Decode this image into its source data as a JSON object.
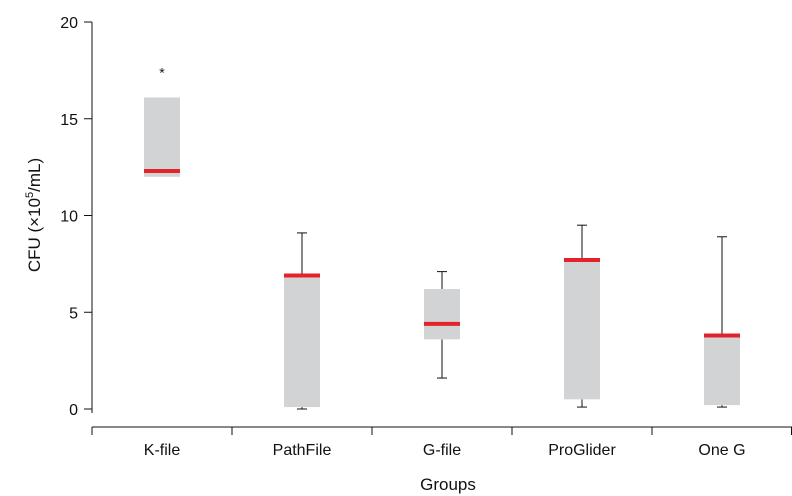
{
  "chart_data": {
    "type": "box",
    "title": "",
    "xlabel": "Groups",
    "ylabel_prefix": "CFU (×10",
    "ylabel_sup": "5",
    "ylabel_suffix": "/mL)",
    "ylim": [
      0,
      20
    ],
    "yticks": [
      "0",
      "5",
      "10",
      "15",
      "20"
    ],
    "grid": false,
    "categories": [
      "K-file",
      "PathFile",
      "G-file",
      "ProGlider",
      "One G"
    ],
    "boxes": [
      {
        "category": "K-file",
        "whisker_low": null,
        "q1": 12.0,
        "median": 12.3,
        "q3": 16.1,
        "whisker_high": null,
        "outlier_marker": "*"
      },
      {
        "category": "PathFile",
        "whisker_low": 0.0,
        "q1": 0.1,
        "median": 6.9,
        "q3": 7.0,
        "whisker_high": 9.1
      },
      {
        "category": "G-file",
        "whisker_low": 1.6,
        "q1": 3.6,
        "median": 4.4,
        "q3": 6.2,
        "whisker_high": 7.1
      },
      {
        "category": "ProGlider",
        "whisker_low": 0.1,
        "q1": 0.5,
        "median": 7.7,
        "q3": 7.7,
        "whisker_high": 9.5
      },
      {
        "category": "One G",
        "whisker_low": 0.1,
        "q1": 0.2,
        "median": 3.8,
        "q3": 3.8,
        "whisker_high": 8.9
      }
    ],
    "colors": {
      "box": "#d2d3d5",
      "median": "#e3232b",
      "axis": "#111111"
    }
  }
}
